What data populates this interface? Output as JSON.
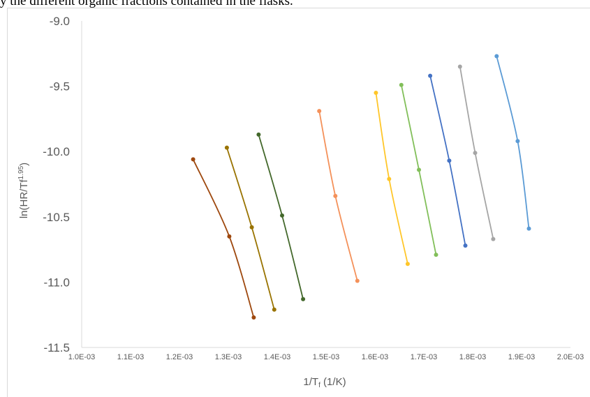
{
  "caption_fragment": "y the different organic fractions contained in the flasks.",
  "chart_data": {
    "type": "line",
    "title": "",
    "xlabel": "1/Tf (1/K)",
    "xlabel_main": "1/T",
    "xlabel_sub": "f",
    "xlabel_unit": " (1/K)",
    "ylabel": "ln(HR/Tf1.95)",
    "ylabel_main": "ln(HR/Tf",
    "ylabel_sup": "1.95",
    "ylabel_close": ")",
    "xlim": [
      0.001,
      0.002
    ],
    "ylim": [
      -11.5,
      -9.0
    ],
    "x_ticks": [
      0.001,
      0.0011,
      0.0012,
      0.0013,
      0.0014,
      0.0015,
      0.0016,
      0.0017,
      0.0018,
      0.0019,
      0.002
    ],
    "x_tick_labels": [
      "1.0E-03",
      "1.1E-03",
      "1.2E-03",
      "1.3E-03",
      "1.4E-03",
      "1.5E-03",
      "1.6E-03",
      "1.7E-03",
      "1.8E-03",
      "1.9E-03",
      "2.0E-03"
    ],
    "y_ticks": [
      -9.0,
      -9.5,
      -10.0,
      -10.5,
      -11.0,
      -11.5
    ],
    "y_tick_labels": [
      "-9.0",
      "-9.5",
      "-10.0",
      "-10.5",
      "-11.0",
      "-11.5"
    ],
    "grid": false,
    "legend": "none",
    "series": [
      {
        "color": "#9E480E",
        "x": [
          0.001228,
          0.001302,
          0.001352
        ],
        "y": [
          -10.06,
          -10.65,
          -11.27
        ]
      },
      {
        "color": "#997300",
        "x": [
          0.001297,
          0.001348,
          0.001394
        ],
        "y": [
          -9.97,
          -10.58,
          -11.21
        ]
      },
      {
        "color": "#43682B",
        "x": [
          0.001362,
          0.00141,
          0.001453
        ],
        "y": [
          -9.87,
          -10.49,
          -11.13
        ]
      },
      {
        "color": "#F4915A",
        "x": [
          0.001486,
          0.001519,
          0.001564
        ],
        "y": [
          -9.69,
          -10.34,
          -10.99
        ]
      },
      {
        "color": "#FFC629",
        "x": [
          0.001602,
          0.001629,
          0.001667
        ],
        "y": [
          -9.55,
          -10.21,
          -10.86
        ]
      },
      {
        "color": "#82BF5A",
        "x": [
          0.001654,
          0.00169,
          0.001725
        ],
        "y": [
          -9.49,
          -10.14,
          -10.79
        ]
      },
      {
        "color": "#4472C4",
        "x": [
          0.001713,
          0.001752,
          0.001785
        ],
        "y": [
          -9.42,
          -10.07,
          -10.72
        ]
      },
      {
        "color": "#A5A5A5",
        "x": [
          0.001774,
          0.001805,
          0.001842
        ],
        "y": [
          -9.35,
          -10.01,
          -10.67
        ]
      },
      {
        "color": "#5B9BD5",
        "x": [
          0.001849,
          0.001892,
          0.001915
        ],
        "y": [
          -9.27,
          -9.92,
          -10.59
        ]
      }
    ]
  }
}
